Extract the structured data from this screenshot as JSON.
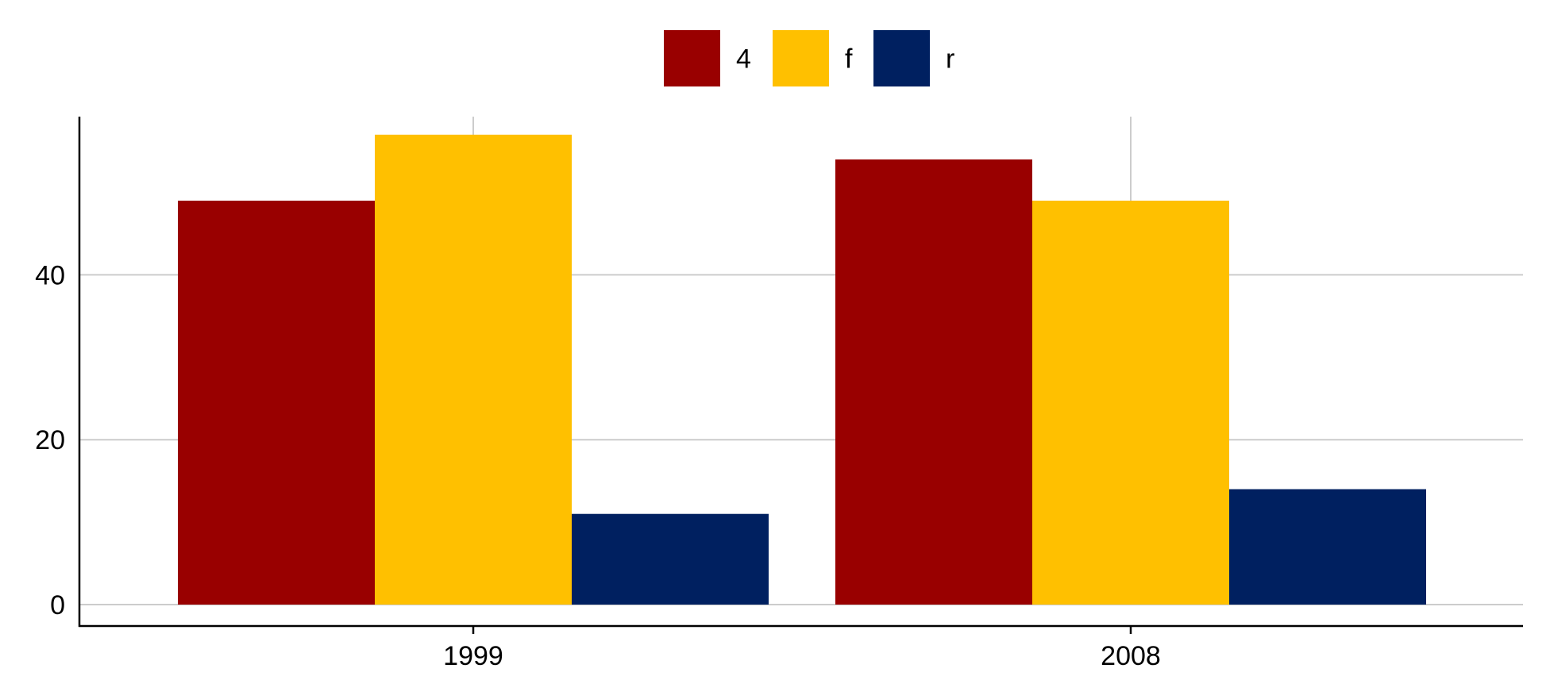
{
  "chart_data": {
    "type": "bar",
    "categories": [
      "1999",
      "2008"
    ],
    "series": [
      {
        "name": "4",
        "color": "#990000",
        "values": [
          49,
          54
        ]
      },
      {
        "name": "f",
        "color": "#FFC000",
        "values": [
          57,
          49
        ]
      },
      {
        "name": "r",
        "color": "#002060",
        "values": [
          11,
          14
        ]
      }
    ],
    "title": "",
    "xlabel": "",
    "ylabel": "",
    "ylim": [
      0,
      59
    ],
    "yticks": [
      "0",
      "20",
      "40"
    ],
    "grid": true,
    "legend_position": "top"
  }
}
